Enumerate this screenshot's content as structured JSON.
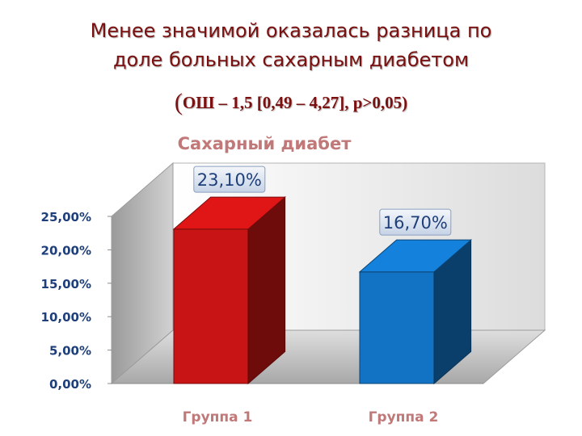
{
  "slide": {
    "title_line1": "Менее значимой оказалась разница по",
    "title_line2": "доле больных сахарным диабетом",
    "subtitle_paren": "(",
    "subtitle_rest": "ОШ – 1,5 [0,49 – 4,27], р>0,05)"
  },
  "colors": {
    "title": "#7a1010",
    "bar_group1": "#c81414",
    "bar_group2": "#1273c4",
    "chart_title": "#c07878",
    "axis_labels": "#1f3f7a",
    "category_labels": "#c07878",
    "data_label_text": "#1f3f7a"
  },
  "chart_data": {
    "type": "bar",
    "title": "Сахарный диабет",
    "categories": [
      "Группа 1",
      "Группа 2"
    ],
    "values": [
      23.1,
      16.7
    ],
    "data_labels": [
      "23,10%",
      "16,70%"
    ],
    "ylim": [
      0,
      25
    ],
    "yticks": [
      0,
      5,
      10,
      15,
      20,
      25
    ],
    "ytick_labels": [
      "0,00%",
      "5,00%",
      "10,00%",
      "15,00%",
      "20,00%",
      "25,00%"
    ],
    "xlabel": "",
    "ylabel": "",
    "style": "3d",
    "grid": false,
    "legend": "none"
  }
}
